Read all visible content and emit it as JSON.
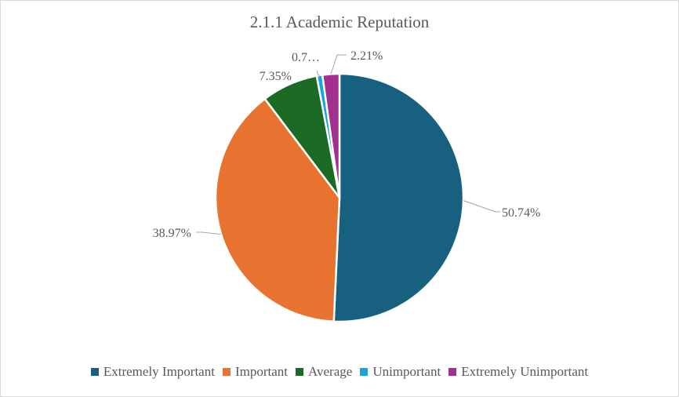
{
  "chart_data": {
    "type": "pie",
    "title": "2.1.1 Academic Reputation",
    "categories": [
      "Extremely Important",
      "Important",
      "Average",
      "Unimportant",
      "Extremely Unimportant"
    ],
    "values": [
      50.74,
      38.97,
      7.35,
      0.74,
      2.21
    ],
    "data_labels": [
      "50.74%",
      "38.97%",
      "7.35%",
      "0.7…",
      "2.21%"
    ],
    "colors": [
      "#17607f",
      "#e87331",
      "#1c6b25",
      "#17a4d8",
      "#a1308f"
    ],
    "legend_position": "bottom"
  }
}
